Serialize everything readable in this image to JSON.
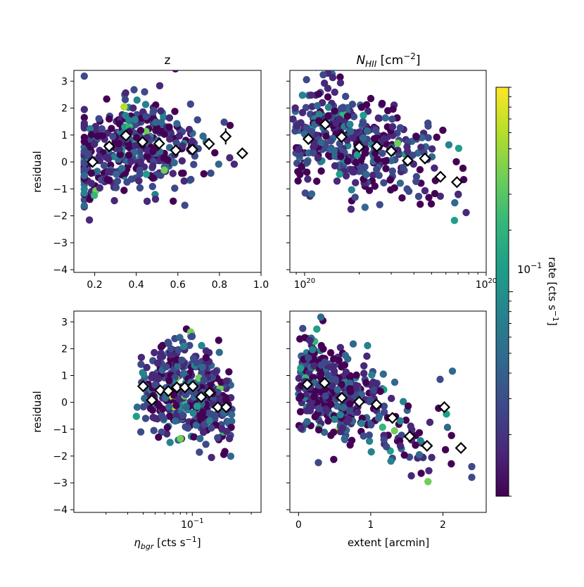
{
  "chart_data": [
    {
      "type": "scatter",
      "panel": "top-left",
      "title": "z",
      "xlabel": "",
      "ylabel": "residual",
      "xscale": "linear",
      "xlim": [
        0.1,
        1.0
      ],
      "ylim": [
        -4.1,
        3.4
      ],
      "xticks": [
        0.2,
        0.4,
        0.6,
        0.8,
        1.0
      ],
      "xtick_labels": [
        "0.2",
        "0.4",
        "0.6",
        "0.8",
        "1.0"
      ],
      "yticks": [
        3,
        2,
        1,
        0,
        -1,
        -2,
        -3,
        -4
      ],
      "ytick_labels": [
        "3",
        "2",
        "1",
        "0",
        "−1",
        "−2",
        "−3",
        "−4"
      ],
      "binned_means": {
        "x": [
          0.19,
          0.27,
          0.35,
          0.43,
          0.51,
          0.59,
          0.67,
          0.75,
          0.83,
          0.91
        ],
        "y": [
          0.0,
          0.58,
          0.98,
          0.74,
          0.68,
          0.43,
          0.46,
          0.67,
          0.95,
          0.32
        ],
        "err": [
          0.1,
          0.12,
          0.12,
          0.12,
          0.13,
          0.16,
          0.18,
          0.22,
          0.3,
          0.2
        ]
      },
      "scatter_spec": {
        "n": 430,
        "x_from": 0.15,
        "x_to": 0.95,
        "x_peak": 0.36,
        "y_center": 0.5,
        "y_spread": 1.0,
        "seed": 11
      }
    },
    {
      "type": "scatter",
      "panel": "top-right",
      "title_main": "N",
      "title_sub": "HII",
      "title_unit": " [cm",
      "title_sup": "−2",
      "title_close": "]",
      "xlabel": "",
      "ylabel": "",
      "xscale": "log",
      "xlim": [
        8.3e+19,
        1e+21
      ],
      "ylim": [
        -4.1,
        3.4
      ],
      "xtick_label_base": "10",
      "xtick_label_exp": "20",
      "binned_means": {
        "x": [
          1.05e+20,
          1.3e+20,
          1.6e+20,
          2e+20,
          2.5e+20,
          3e+20,
          3.7e+20,
          4.6e+20,
          5.6e+20,
          6.9e+20
        ],
        "y": [
          0.85,
          1.4,
          0.93,
          0.56,
          0.58,
          0.4,
          0.05,
          0.13,
          -0.55,
          -0.75
        ],
        "err": [
          0.12,
          0.13,
          0.13,
          0.12,
          0.12,
          0.12,
          0.13,
          0.15,
          0.18,
          0.2
        ]
      },
      "scatter_spec": {
        "n": 430,
        "x_from": 8.6e+19,
        "x_to": 7.8e+20,
        "x_peak": 1.8e+20,
        "y_center": 0.5,
        "y_spread": 1.0,
        "seed": 23
      }
    },
    {
      "type": "scatter",
      "panel": "bottom-left",
      "xlabel_main": "η",
      "xlabel_sub": "bgr",
      "xlabel_unit": " [cts s",
      "xlabel_sup": "−1",
      "xlabel_close": "]",
      "ylabel": "residual",
      "xscale": "log",
      "xlim": [
        0.011,
        0.36
      ],
      "ylim": [
        -4.1,
        3.4
      ],
      "xtick_label_base": "10",
      "xtick_label_exp": "−1",
      "binned_means": {
        "x": [
          0.04,
          0.047,
          0.055,
          0.064,
          0.075,
          0.087,
          0.101,
          0.118,
          0.138,
          0.161,
          0.188
        ],
        "y": [
          0.6,
          0.08,
          0.45,
          0.42,
          0.56,
          0.56,
          0.6,
          0.2,
          0.36,
          -0.18,
          -0.18
        ],
        "err": [
          0.12,
          0.14,
          0.12,
          0.12,
          0.12,
          0.12,
          0.12,
          0.13,
          0.14,
          0.15,
          0.18
        ]
      },
      "scatter_spec": {
        "n": 430,
        "x_from": 0.035,
        "x_to": 0.21,
        "x_peak": 0.1,
        "y_center": 0.4,
        "y_spread": 1.05,
        "seed": 37
      }
    },
    {
      "type": "scatter",
      "panel": "bottom-right",
      "xlabel": "extent [arcmin]",
      "ylabel": "",
      "xscale": "linear",
      "xlim": [
        -0.12,
        2.6
      ],
      "ylim": [
        -4.1,
        3.4
      ],
      "xticks": [
        0,
        1,
        2
      ],
      "xtick_labels": [
        "0",
        "1",
        "2"
      ],
      "binned_means": {
        "x": [
          0.12,
          0.36,
          0.6,
          0.84,
          1.08,
          1.3,
          1.54,
          1.78,
          2.02,
          2.25
        ],
        "y": [
          0.67,
          0.72,
          0.17,
          0.02,
          -0.08,
          -0.58,
          -1.27,
          -1.62,
          -0.18,
          -1.7
        ],
        "err": [
          0.1,
          0.12,
          0.12,
          0.12,
          0.14,
          0.16,
          0.2,
          0.18,
          0.12,
          0.1
        ]
      },
      "scatter_spec": {
        "n": 430,
        "x_from": 0.0,
        "x_to": 2.4,
        "x_peak": 0.0,
        "y_center": 0.6,
        "y_spread": 1.0,
        "seed": 53
      }
    }
  ],
  "colorbar": {
    "label": "rate [cts s",
    "label_sup": "−1",
    "label_close": "]",
    "scale": "log",
    "range": [
      0.01,
      1.0
    ],
    "tick_label_base": "10",
    "tick_label_exp": "−1",
    "colormap": "viridis"
  },
  "colors": {
    "viridis": [
      "#440154",
      "#482878",
      "#3e4989",
      "#31688e",
      "#26828e",
      "#1f9e89",
      "#35b779",
      "#6ece58",
      "#b5de2b",
      "#fde725"
    ],
    "marker_edge": "#000000",
    "marker_face": "#ffffff"
  }
}
